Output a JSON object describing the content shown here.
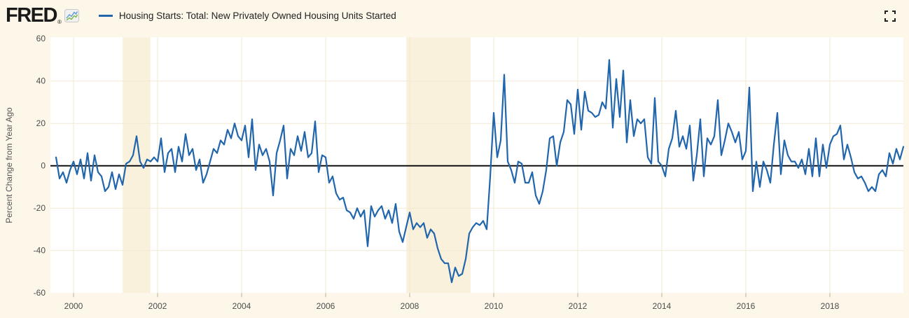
{
  "header": {
    "brand": "FRED",
    "registered": "®",
    "legend_items": [
      {
        "label": "Housing Starts: Total: New Privately Owned Housing Units Started",
        "color": "#2166ac"
      }
    ]
  },
  "colors": {
    "background": "#fdf7ea",
    "plot_background": "#ffffff",
    "recession_band": "#f9f1dc",
    "gridline": "#f1e9d2",
    "zero_line": "#000000",
    "line": "#2166ac",
    "tick_mark": "#b9b09b",
    "tick_text": "#4d4d4d",
    "axis_title_text": "#555555",
    "logo_text": "#1a1a1a",
    "logo_icon_blue": "#5b9bd5",
    "logo_icon_green": "#7ab648",
    "fullscreen_icon": "#222222"
  },
  "y_axis": {
    "title": "Percent Change from Year Ago",
    "min": -60,
    "max": 60,
    "ticks": [
      60,
      40,
      20,
      0,
      -20,
      -40,
      -60
    ]
  },
  "x_axis": {
    "min": 1999.45,
    "max": 2019.75,
    "ticks": [
      2000,
      2002,
      2004,
      2006,
      2008,
      2010,
      2012,
      2014,
      2016,
      2018
    ]
  },
  "recession_bands": [
    {
      "start_year": 2001.17,
      "end_year": 2001.83
    },
    {
      "start_year": 2007.92,
      "end_year": 2009.45
    }
  ],
  "chart_data": {
    "type": "line",
    "title": "Housing Starts: Total: New Privately Owned Housing Units Started",
    "ylabel": "Percent Change from Year Ago",
    "ylim": [
      -60,
      60
    ],
    "xlim_years": [
      1999.45,
      2019.75
    ],
    "x_start_month": "1999-08",
    "frequency": "monthly",
    "grid": true,
    "legend_position": "top",
    "values": [
      4,
      -6,
      -3,
      -8,
      -2,
      2,
      -4,
      3,
      -6,
      6,
      -7,
      5,
      -3,
      -5,
      -12,
      -10,
      -3,
      -11,
      -4,
      -9,
      1,
      2,
      5,
      14,
      2,
      -1,
      3,
      2,
      4,
      2,
      13,
      -3,
      6,
      8,
      -3,
      9,
      2,
      15,
      5,
      8,
      -2,
      3,
      -8,
      -4,
      2,
      8,
      6,
      12,
      10,
      17,
      13,
      20,
      14,
      12,
      19,
      4,
      22,
      -2,
      10,
      5,
      8,
      2,
      -14,
      6,
      12,
      19,
      -6,
      8,
      5,
      14,
      7,
      16,
      4,
      6,
      21,
      -3,
      5,
      4,
      -8,
      -5,
      -13,
      -16,
      -15,
      -21,
      -22,
      -25,
      -20,
      -24,
      -21,
      -38,
      -19,
      -24,
      -21,
      -19,
      -25,
      -21,
      -27,
      -18,
      -31,
      -36,
      -29,
      -22,
      -30,
      -27,
      -29,
      -27,
      -34,
      -30,
      -32,
      -39,
      -44,
      -46,
      -46,
      -55,
      -48,
      -52,
      -51,
      -44,
      -32,
      -29,
      -27,
      -28,
      -26,
      -30,
      -5,
      25,
      4,
      12,
      43,
      2,
      -2,
      -8,
      2,
      1,
      -8,
      -8,
      -3,
      -14,
      -18,
      -12,
      -2,
      13,
      14,
      0,
      11,
      16,
      31,
      29,
      15,
      36,
      17,
      35,
      26,
      25,
      23,
      24,
      30,
      27,
      50,
      18,
      41,
      23,
      45,
      11,
      31,
      14,
      22,
      20,
      22,
      4,
      1,
      32,
      2,
      0,
      -5,
      8,
      13,
      26,
      9,
      14,
      8,
      19,
      -7,
      5,
      22,
      -5,
      13,
      10,
      14,
      31,
      5,
      12,
      20,
      16,
      11,
      16,
      3,
      7,
      37,
      -12,
      2,
      -10,
      2,
      -2,
      -8,
      10,
      25,
      -4,
      12,
      5,
      2,
      2,
      -1,
      3,
      -4,
      8,
      -5,
      13,
      -5,
      10,
      -1,
      10,
      14,
      15,
      19,
      3,
      10,
      4,
      -3,
      -6,
      -5,
      -8,
      -12,
      -10,
      -12,
      -4,
      -2,
      -5,
      6,
      1,
      8,
      3,
      9
    ]
  }
}
